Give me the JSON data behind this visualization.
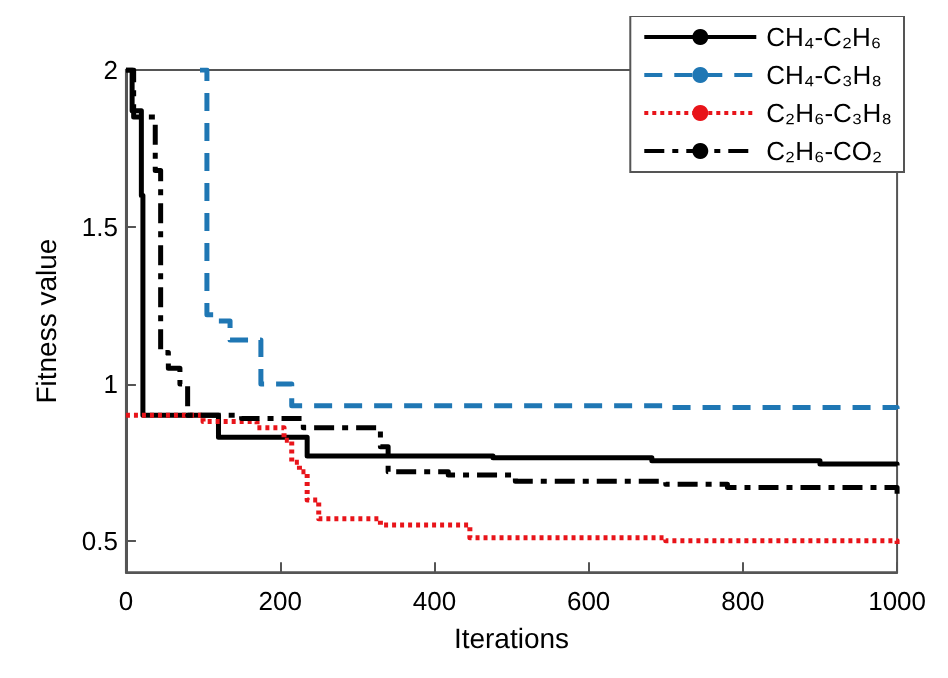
{
  "chart_data": {
    "type": "step",
    "xlabel": "Iterations",
    "ylabel": "Fitness value",
    "xlim": [
      0,
      1000
    ],
    "xticks": [
      0,
      200,
      400,
      600,
      800,
      1000
    ],
    "ylim": [
      0.4,
      2
    ],
    "yticks": [
      0.5,
      1,
      1.5,
      2
    ],
    "grid": false,
    "legend": "top right",
    "series": [
      {
        "name": "CH₄-C₂H₆",
        "color": "#000000",
        "line_style": "solid",
        "x": [
          0,
          8,
          20,
          22,
          120,
          235,
          476,
          682,
          900,
          1000
        ],
        "values": [
          2,
          1.87,
          1.6,
          0.9,
          0.83,
          0.77,
          0.765,
          0.755,
          0.745,
          0.74
        ]
      },
      {
        "name": "CH₄-C₃H₈",
        "color": "#1f77b4",
        "line_style": "dashed",
        "x": [
          96,
          105,
          115,
          135,
          175,
          215,
          700,
          1000
        ],
        "values": [
          2,
          1.22,
          1.2,
          1.14,
          1.0,
          0.93,
          0.925,
          0.92
        ]
      },
      {
        "name": "C₂H₆-C₃H₈",
        "color": "#e8141a",
        "line_style": "dotted",
        "x": [
          0,
          100,
          170,
          205,
          215,
          225,
          235,
          250,
          330,
          446,
          700,
          1000
        ],
        "values": [
          0.9,
          0.88,
          0.86,
          0.82,
          0.75,
          0.72,
          0.63,
          0.57,
          0.55,
          0.51,
          0.5,
          0.49
        ]
      },
      {
        "name": "C₂H₆-CO₂",
        "color": "#000000",
        "line_style": "dashdot",
        "x": [
          0,
          10,
          38,
          45,
          55,
          70,
          80,
          150,
          230,
          330,
          340,
          418,
          505,
          700,
          780,
          1000
        ],
        "values": [
          2,
          1.85,
          1.68,
          1.1,
          1.05,
          1.0,
          0.9,
          0.89,
          0.86,
          0.8,
          0.72,
          0.71,
          0.69,
          0.68,
          0.67,
          0.65
        ]
      }
    ]
  }
}
